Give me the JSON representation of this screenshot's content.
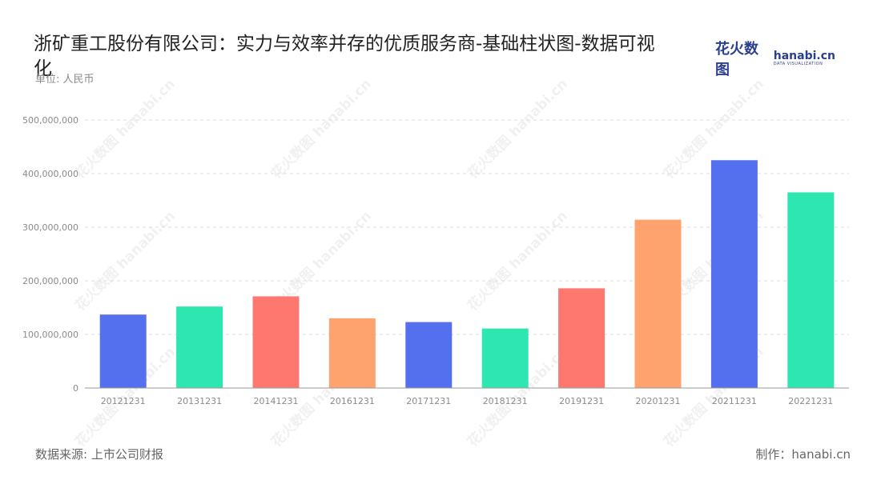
{
  "header": {
    "title": "浙矿重工股份有限公司：实力与效率并存的优质服务商-基础柱状图-数据可视化",
    "unit": "单位: 人民币"
  },
  "logo": {
    "cn": "花火数图",
    "en": "hanabi.cn",
    "sub": "DATA VISUALIZATION",
    "color": "#2b3f8f"
  },
  "footer": {
    "source": "数据来源: 上市公司财报",
    "maker": "制作：hanabi.cn"
  },
  "watermark": {
    "text": "花火数图 hanabi.cn"
  },
  "chart_data": {
    "type": "bar",
    "categories": [
      "20121231",
      "20131231",
      "20141231",
      "20161231",
      "20171231",
      "20181231",
      "20191231",
      "20201231",
      "20211231",
      "20221231"
    ],
    "values": [
      137000000,
      152000000,
      171000000,
      130000000,
      123000000,
      111000000,
      186000000,
      314000000,
      425000000,
      365000000
    ],
    "colors": [
      "#5470ee",
      "#2de6b0",
      "#ff7870",
      "#ffa36e",
      "#5470ee",
      "#2de6b0",
      "#ff7870",
      "#ffa36e",
      "#5470ee",
      "#2de6b0"
    ],
    "ylim": [
      0,
      500000000
    ],
    "yticks": [
      0,
      100000000,
      200000000,
      300000000,
      400000000,
      500000000
    ],
    "ytick_labels": [
      "0",
      "100,000,000",
      "200,000,000",
      "300,000,000",
      "400,000,000",
      "500,000,000"
    ],
    "grid": true,
    "legend": "none"
  }
}
